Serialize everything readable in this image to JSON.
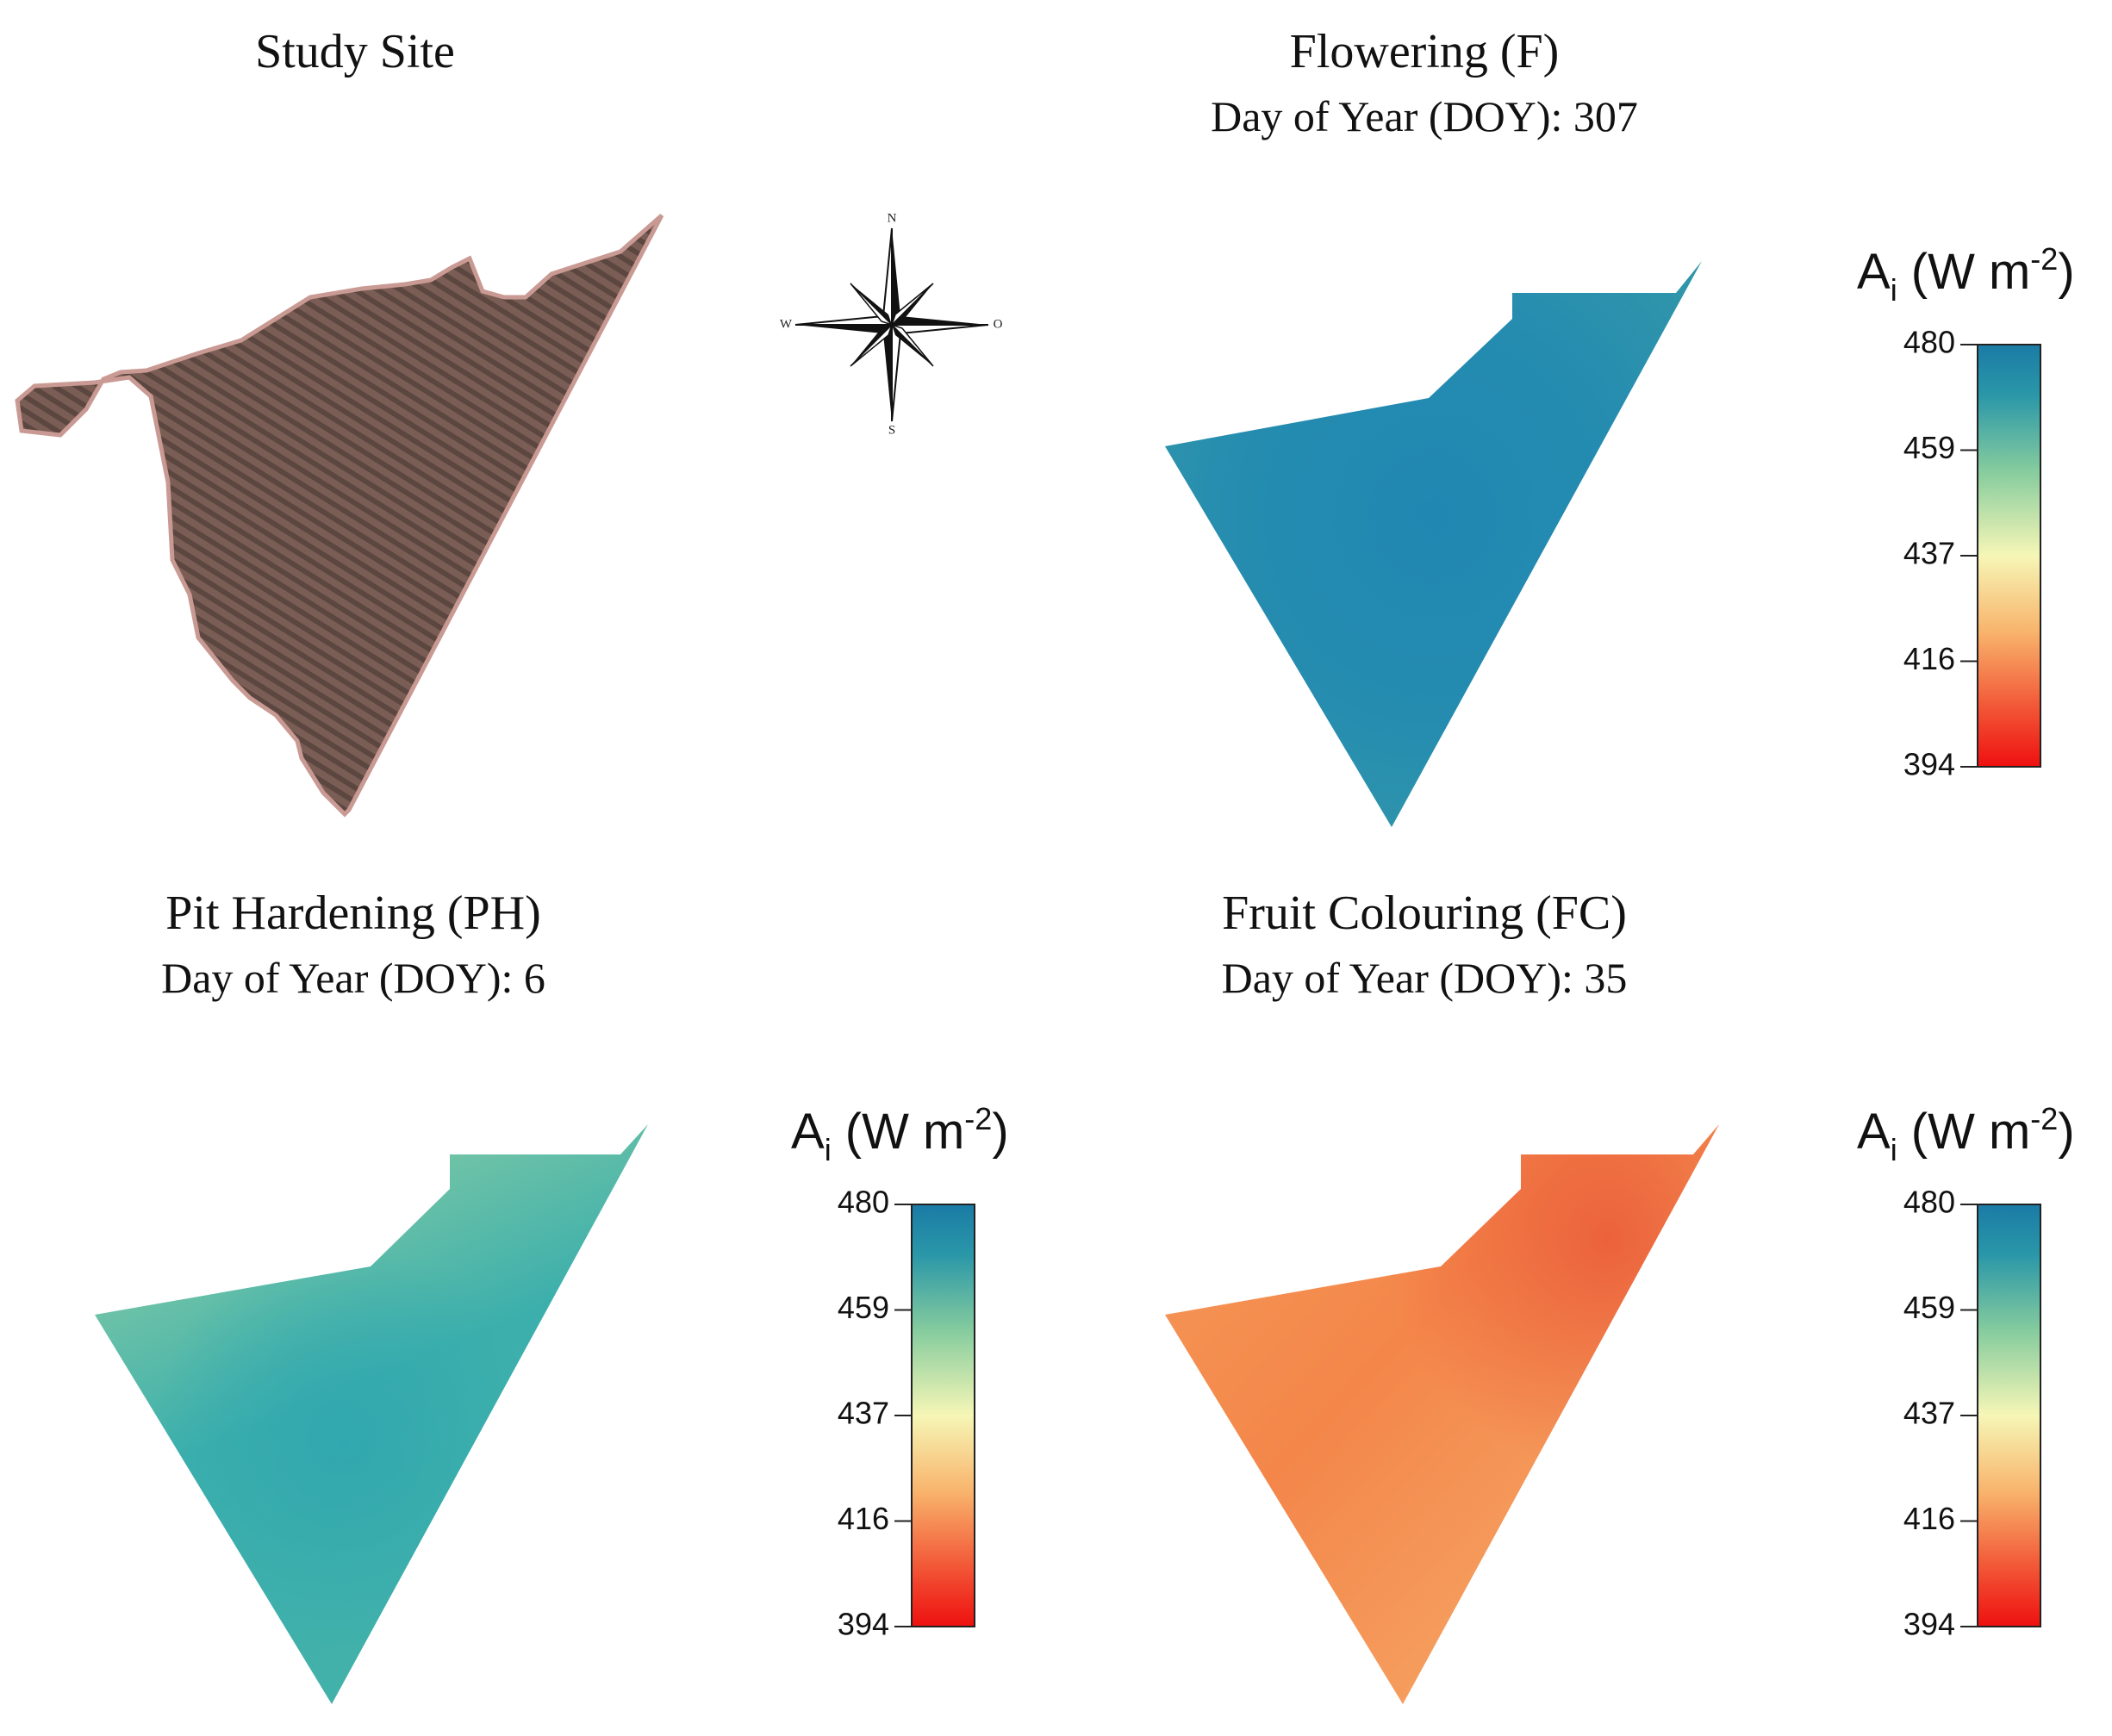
{
  "panels": [
    {
      "id": "study_site",
      "title": "Study Site",
      "subtitle": ""
    },
    {
      "id": "flowering",
      "title": "Flowering (F)",
      "subtitle": "Day of Year (DOY): 307",
      "mean_value": 472
    },
    {
      "id": "pit_hardening",
      "title": "Pit Hardening (PH)",
      "subtitle": "Day of Year (DOY): 6",
      "mean_value": 462
    },
    {
      "id": "fruit_colouring",
      "title": "Fruit Colouring (FC)",
      "subtitle": "Day of Year (DOY): 35",
      "mean_value": 421
    }
  ],
  "legend": {
    "title": "A",
    "title_sub": "i",
    "title_units": " (W m",
    "title_sup": "-2",
    "title_close": ")",
    "ticks": [
      "480",
      "459",
      "437",
      "416",
      "394"
    ],
    "min": 394,
    "max": 480,
    "colors": [
      "#1a7fa8",
      "#2fa0a8",
      "#8fd0a0",
      "#f4f4b4",
      "#f8b870",
      "#f05030",
      "#ee1515"
    ]
  },
  "compass": {
    "n": "N",
    "s": "S",
    "w": "W",
    "e": "O"
  }
}
